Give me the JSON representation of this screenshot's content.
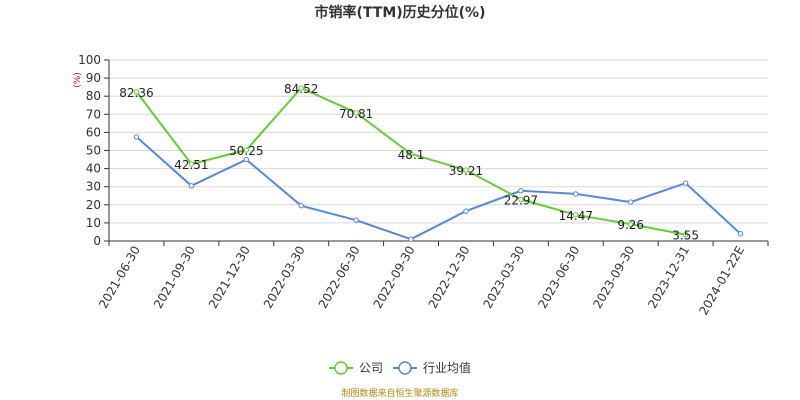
{
  "chart_data": {
    "type": "line",
    "title": "市销率(TTM)历史分位(%)",
    "unit_label": "(%)",
    "categories": [
      "2021-06-30",
      "2021-09-30",
      "2021-12-30",
      "2022-03-30",
      "2022-06-30",
      "2022-09-30",
      "2022-12-30",
      "2023-03-30",
      "2023-06-30",
      "2023-09-30",
      "2023-12-31",
      "2024-01-22E"
    ],
    "ylim": [
      0,
      100
    ],
    "yticks": [
      0,
      10,
      20,
      30,
      40,
      50,
      60,
      70,
      80,
      90,
      100
    ],
    "grid": true,
    "legend_position": "bottom",
    "series": [
      {
        "name": "公司",
        "color": "#66cc33",
        "values": [
          82.36,
          42.51,
          50.25,
          84.52,
          70.81,
          48.1,
          39.21,
          22.97,
          14.47,
          9.26,
          3.55,
          null
        ],
        "labels": [
          "82.36",
          "42.51",
          "50.25",
          "84.52",
          "70.81",
          "48.1",
          "39.21",
          "22.97",
          "14.47",
          "9.26",
          "3.55",
          ""
        ]
      },
      {
        "name": "行业均值",
        "color": "#5588dd",
        "values": [
          57.5,
          30.5,
          45.0,
          19.5,
          11.5,
          1.0,
          16.5,
          27.8,
          26.0,
          21.5,
          32.0,
          4.0
        ]
      }
    ],
    "source": "制图数据来自恒生聚源数据库"
  }
}
